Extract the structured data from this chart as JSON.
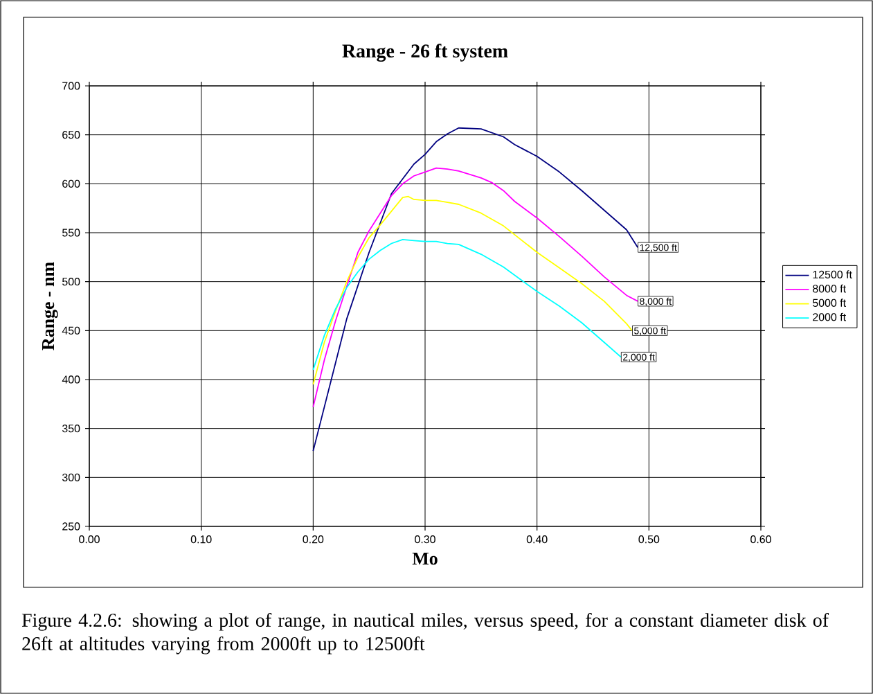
{
  "chart_data": {
    "type": "line",
    "title": "Range - 26 ft system",
    "xlabel": "Mo",
    "ylabel": "Range - nm",
    "xlim": [
      0,
      0.6
    ],
    "ylim": [
      250,
      700
    ],
    "xticks": [
      {
        "value": 0,
        "label": "0.00"
      },
      {
        "value": 0.1,
        "label": "0.10"
      },
      {
        "value": 0.2,
        "label": "0.20"
      },
      {
        "value": 0.3,
        "label": "0.30"
      },
      {
        "value": 0.4,
        "label": "0.40"
      },
      {
        "value": 0.5,
        "label": "0.50"
      },
      {
        "value": 0.6,
        "label": "0.60"
      }
    ],
    "yticks": [
      250,
      300,
      350,
      400,
      450,
      500,
      550,
      600,
      650,
      700
    ],
    "grid": true,
    "legend": "right",
    "series": [
      {
        "name": "12500 ft",
        "color": "#000080",
        "x": [
          0.2,
          0.23,
          0.25,
          0.27,
          0.28,
          0.29,
          0.3,
          0.31,
          0.32,
          0.33,
          0.35,
          0.36,
          0.37,
          0.38,
          0.4,
          0.42,
          0.44,
          0.46,
          0.48,
          0.49
        ],
        "values": [
          327,
          462,
          530,
          590,
          605,
          620,
          630,
          643,
          651,
          657,
          656,
          652,
          648,
          640,
          628,
          612,
          593,
          573,
          553,
          535
        ]
      },
      {
        "name": "8000 ft",
        "color": "#ff00ff",
        "x": [
          0.2,
          0.21,
          0.22,
          0.24,
          0.25,
          0.26,
          0.27,
          0.28,
          0.29,
          0.3,
          0.31,
          0.32,
          0.33,
          0.35,
          0.36,
          0.37,
          0.38,
          0.4,
          0.42,
          0.44,
          0.46,
          0.48,
          0.49
        ],
        "values": [
          372,
          420,
          460,
          530,
          552,
          570,
          588,
          600,
          608,
          612,
          616,
          615,
          613,
          606,
          601,
          593,
          582,
          565,
          546,
          526,
          505,
          486,
          480
        ]
      },
      {
        "name": "5000 ft",
        "color": "#ffff00",
        "x": [
          0.2,
          0.21,
          0.22,
          0.23,
          0.24,
          0.25,
          0.26,
          0.27,
          0.28,
          0.285,
          0.29,
          0.3,
          0.31,
          0.32,
          0.33,
          0.35,
          0.37,
          0.4,
          0.42,
          0.44,
          0.46,
          0.48,
          0.485
        ],
        "values": [
          395,
          438,
          470,
          500,
          525,
          545,
          558,
          572,
          586,
          587,
          584,
          583,
          583,
          581,
          579,
          570,
          557,
          530,
          514,
          498,
          480,
          457,
          450
        ]
      },
      {
        "name": "2000 ft",
        "color": "#00ffff",
        "x": [
          0.2,
          0.21,
          0.22,
          0.23,
          0.24,
          0.25,
          0.26,
          0.27,
          0.28,
          0.29,
          0.3,
          0.31,
          0.32,
          0.33,
          0.35,
          0.37,
          0.4,
          0.42,
          0.44,
          0.46,
          0.475
        ],
        "values": [
          410,
          445,
          472,
          494,
          510,
          523,
          532,
          539,
          543,
          542,
          541,
          541,
          539,
          538,
          528,
          515,
          490,
          475,
          458,
          438,
          423
        ]
      }
    ],
    "annotations": [
      {
        "text": "12,500 ft",
        "x": 0.49,
        "y": 535
      },
      {
        "text": "8,000 ft",
        "x": 0.49,
        "y": 480
      },
      {
        "text": "5,000 ft",
        "x": 0.485,
        "y": 450
      },
      {
        "text": "2,000 ft",
        "x": 0.475,
        "y": 423
      },
      "Figure 4.2.6: showing a plot of range, in nautical miles, versus speed, for a constant diameter disk of 26ft at altitudes varying from 2000ft up to 12500ft"
    ]
  }
}
